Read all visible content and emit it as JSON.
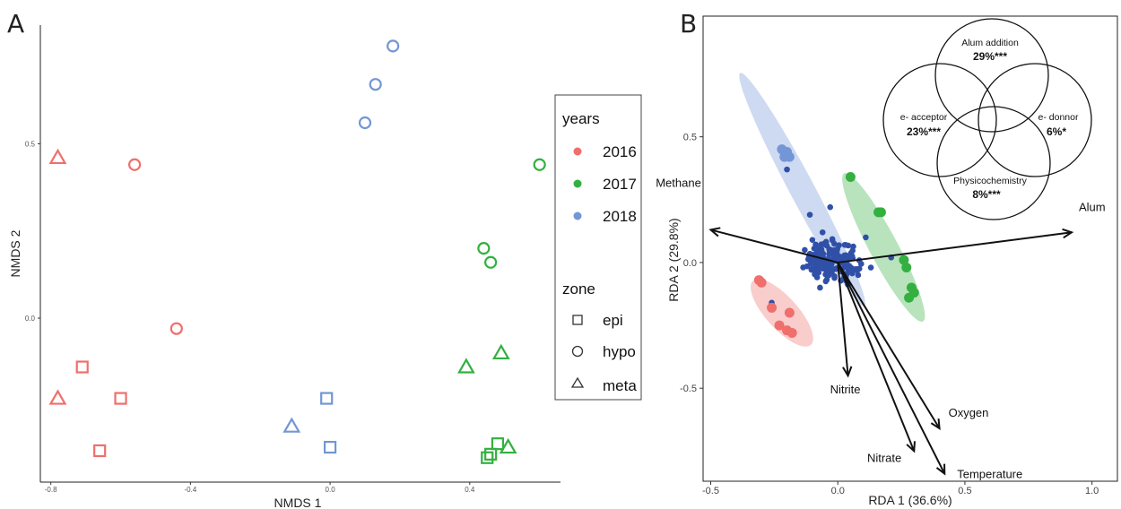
{
  "chart_data": [
    {
      "panel": "A",
      "type": "scatter",
      "xlabel": "NMDS 1",
      "ylabel": "NMDS 2",
      "xlim": [
        -0.83,
        0.66
      ],
      "ylim": [
        -0.47,
        0.84
      ],
      "xticks": [
        "-0.8",
        "-0.4",
        "0.0",
        "0.4"
      ],
      "yticks": [
        "0.0",
        "0.5"
      ],
      "xtick_values": [
        -0.8,
        -0.4,
        0.0,
        0.4
      ],
      "ytick_values": [
        0.0,
        0.5
      ],
      "grid": false,
      "legend_placement": "right",
      "legend": {
        "years_title": "years",
        "years": [
          {
            "label": "2016",
            "color": "#ef6f6c"
          },
          {
            "label": "2017",
            "color": "#33b040"
          },
          {
            "label": "2018",
            "color": "#7396d6"
          }
        ],
        "zone_title": "zone",
        "zones": [
          {
            "label": "epi",
            "shape": "square"
          },
          {
            "label": "hypo",
            "shape": "circle"
          },
          {
            "label": "meta",
            "shape": "triangle"
          }
        ]
      },
      "points": [
        {
          "x": -0.78,
          "y": 0.46,
          "year": "2016",
          "zone": "meta"
        },
        {
          "x": -0.56,
          "y": 0.44,
          "year": "2016",
          "zone": "hypo"
        },
        {
          "x": -0.44,
          "y": -0.03,
          "year": "2016",
          "zone": "hypo"
        },
        {
          "x": -0.71,
          "y": -0.14,
          "year": "2016",
          "zone": "epi"
        },
        {
          "x": -0.78,
          "y": -0.23,
          "year": "2016",
          "zone": "meta"
        },
        {
          "x": -0.6,
          "y": -0.23,
          "year": "2016",
          "zone": "epi"
        },
        {
          "x": -0.66,
          "y": -0.38,
          "year": "2016",
          "zone": "epi"
        },
        {
          "x": 0.18,
          "y": 0.78,
          "year": "2018",
          "zone": "hypo"
        },
        {
          "x": 0.13,
          "y": 0.67,
          "year": "2018",
          "zone": "hypo"
        },
        {
          "x": 0.1,
          "y": 0.56,
          "year": "2018",
          "zone": "hypo"
        },
        {
          "x": -0.01,
          "y": -0.23,
          "year": "2018",
          "zone": "epi"
        },
        {
          "x": -0.11,
          "y": -0.31,
          "year": "2018",
          "zone": "meta"
        },
        {
          "x": 0.0,
          "y": -0.37,
          "year": "2018",
          "zone": "epi"
        },
        {
          "x": 0.6,
          "y": 0.44,
          "year": "2017",
          "zone": "hypo"
        },
        {
          "x": 0.44,
          "y": 0.2,
          "year": "2017",
          "zone": "hypo"
        },
        {
          "x": 0.46,
          "y": 0.16,
          "year": "2017",
          "zone": "hypo"
        },
        {
          "x": 0.39,
          "y": -0.14,
          "year": "2017",
          "zone": "meta"
        },
        {
          "x": 0.49,
          "y": -0.1,
          "year": "2017",
          "zone": "meta"
        },
        {
          "x": 0.48,
          "y": -0.36,
          "year": "2017",
          "zone": "epi"
        },
        {
          "x": 0.51,
          "y": -0.37,
          "year": "2017",
          "zone": "meta"
        },
        {
          "x": 0.46,
          "y": -0.39,
          "year": "2017",
          "zone": "epi"
        },
        {
          "x": 0.45,
          "y": -0.4,
          "year": "2017",
          "zone": "epi"
        }
      ]
    },
    {
      "panel": "B",
      "type": "scatter",
      "xlabel": "RDA 1 (36.6%)",
      "ylabel": "RDA 2 (29.8%)",
      "xlim": [
        -0.53,
        1.1
      ],
      "ylim": [
        -0.87,
        0.98
      ],
      "xticks": [
        "-0.5",
        "0.0",
        "0.5",
        "1.0"
      ],
      "yticks": [
        "-0.5",
        "0.0",
        "0.5"
      ],
      "xtick_values": [
        -0.5,
        0.0,
        0.5,
        1.0
      ],
      "ytick_values": [
        -0.5,
        0.0,
        0.5
      ],
      "grid": false,
      "group_colors": {
        "2016": "#ef6f6c",
        "2017": "#33b040",
        "2018": "#7396d6",
        "species": "#3050a8"
      },
      "ellipses": [
        {
          "group": "2018",
          "center": [
            -0.14,
            0.29
          ],
          "rx": 0.52,
          "ry": 0.035,
          "angle": -62
        },
        {
          "group": "2017",
          "center": [
            0.18,
            0.06
          ],
          "rx": 0.33,
          "ry": 0.04,
          "angle": -62
        },
        {
          "group": "2016",
          "center": [
            -0.22,
            -0.2
          ],
          "rx": 0.17,
          "ry": 0.045,
          "angle": -48
        }
      ],
      "sample_points": [
        {
          "group": "2018",
          "x": -0.22,
          "y": 0.45
        },
        {
          "group": "2018",
          "x": -0.2,
          "y": 0.44
        },
        {
          "group": "2018",
          "x": -0.19,
          "y": 0.42
        },
        {
          "group": "2018",
          "x": -0.21,
          "y": 0.42
        },
        {
          "group": "2017",
          "x": 0.05,
          "y": 0.34
        },
        {
          "group": "2017",
          "x": 0.16,
          "y": 0.2
        },
        {
          "group": "2017",
          "x": 0.17,
          "y": 0.2
        },
        {
          "group": "2017",
          "x": 0.26,
          "y": 0.01
        },
        {
          "group": "2017",
          "x": 0.27,
          "y": -0.02
        },
        {
          "group": "2017",
          "x": 0.29,
          "y": -0.1
        },
        {
          "group": "2017",
          "x": 0.3,
          "y": -0.12
        },
        {
          "group": "2017",
          "x": 0.28,
          "y": -0.14
        },
        {
          "group": "2016",
          "x": -0.31,
          "y": -0.07
        },
        {
          "group": "2016",
          "x": -0.3,
          "y": -0.08
        },
        {
          "group": "2016",
          "x": -0.26,
          "y": -0.18
        },
        {
          "group": "2016",
          "x": -0.23,
          "y": -0.25
        },
        {
          "group": "2016",
          "x": -0.2,
          "y": -0.27
        },
        {
          "group": "2016",
          "x": -0.18,
          "y": -0.28
        },
        {
          "group": "2016",
          "x": -0.19,
          "y": -0.2
        }
      ],
      "arrows": [
        {
          "label": "Methane",
          "x": -0.5,
          "y": 0.13
        },
        {
          "label": "Alum",
          "x": 0.92,
          "y": 0.12
        },
        {
          "label": "Nitrite",
          "x": 0.04,
          "y": -0.45
        },
        {
          "label": "Oxygen",
          "x": 0.4,
          "y": -0.66
        },
        {
          "label": "Nitrate",
          "x": 0.3,
          "y": -0.75
        },
        {
          "label": "Temperature",
          "x": 0.42,
          "y": -0.84
        }
      ],
      "venn": [
        {
          "name": "Alum addition",
          "value": "29%***"
        },
        {
          "name": "e- acceptor",
          "value": "23%***"
        },
        {
          "name": "e- donnor",
          "value": "6%*"
        },
        {
          "name": "Physicochemistry",
          "value": "8%***"
        }
      ]
    }
  ],
  "panels": {
    "a_letter": "A",
    "b_letter": "B"
  }
}
